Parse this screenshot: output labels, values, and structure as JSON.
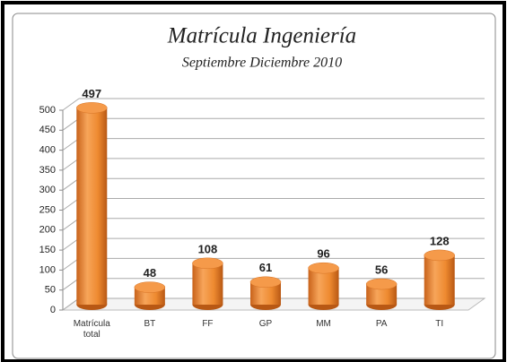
{
  "chart_data": {
    "type": "bar",
    "title": "Matrícula Ingeniería",
    "subtitle": "Septiembre Diciembre 2010",
    "categories": [
      "Matrícula total",
      "BT",
      "FF",
      "GP",
      "MM",
      "PA",
      "TI"
    ],
    "values": [
      497,
      48,
      108,
      61,
      96,
      56,
      128
    ],
    "color": "#f0892e",
    "ylim": [
      0,
      500
    ],
    "yticks": [
      0,
      50,
      100,
      150,
      200,
      250,
      300,
      350,
      400,
      450,
      500
    ],
    "grid": true
  }
}
